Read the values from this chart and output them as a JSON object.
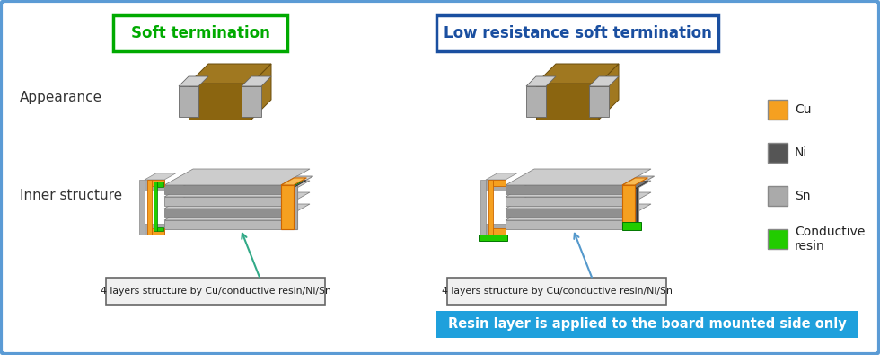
{
  "bg_color": "#e8f4fb",
  "outer_border_color": "#5b9bd5",
  "title_left": "Soft termination",
  "title_left_color": "#00aa00",
  "title_left_box_color": "#00aa00",
  "title_right": "Low resistance soft termination",
  "title_right_color": "#1a4fa0",
  "title_right_box_color": "#1a4fa0",
  "label_appearance": "Appearance",
  "label_inner": "Inner structure",
  "label_color": "#333333",
  "legend_items": [
    "Cu",
    "Ni",
    "Sn",
    "Conductive\nresin"
  ],
  "legend_colors": [
    "#f5a020",
    "#555555",
    "#aaaaaa",
    "#22cc00"
  ],
  "callout_text": "4 layers structure by Cu/conductive resin/Ni/Sn",
  "callout_box_color": "#f0f0f0",
  "callout_border_color": "#666666",
  "bottom_banner_text": "Resin layer is applied to the board mounted side only",
  "bottom_banner_bg": "#1fa0dc",
  "bottom_banner_text_color": "#ffffff",
  "white_bg": "#ffffff",
  "body_brown": "#8B6510",
  "body_brown_dark": "#6a4c0c",
  "body_brown_light": "#a07820",
  "silver_light": "#d0d0d0",
  "silver_mid": "#b0b0b0",
  "silver_dark": "#909090",
  "cu_color": "#f5a020",
  "cu_light": "#f8bb55",
  "ni_color": "#555555",
  "ni_light": "#777777",
  "sn_color": "#aaaaaa",
  "resin_color": "#22cc00",
  "resin_light": "#55ee33",
  "ceramic_color": "#b8b8b8",
  "ceramic_dark": "#909090"
}
